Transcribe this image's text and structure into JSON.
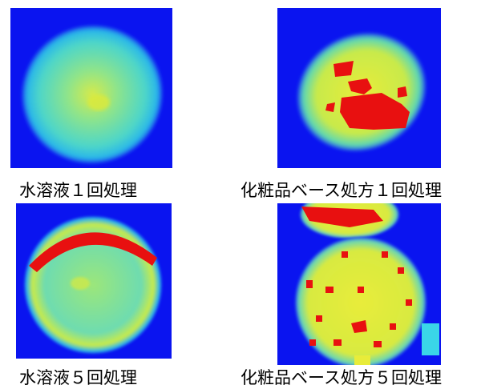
{
  "panels": [
    {
      "caption": "水溶液１回処理"
    },
    {
      "caption": "化粧品ベース処方１回処理"
    },
    {
      "caption": "水溶液５回処理"
    },
    {
      "caption": "化粧品ベース処方５回処理"
    }
  ],
  "colors": {
    "background": "#0a14f0",
    "cyan": "#3ad6e8",
    "green": "#8ee87a",
    "yellow": "#e8ec3a",
    "red": "#e81010"
  }
}
